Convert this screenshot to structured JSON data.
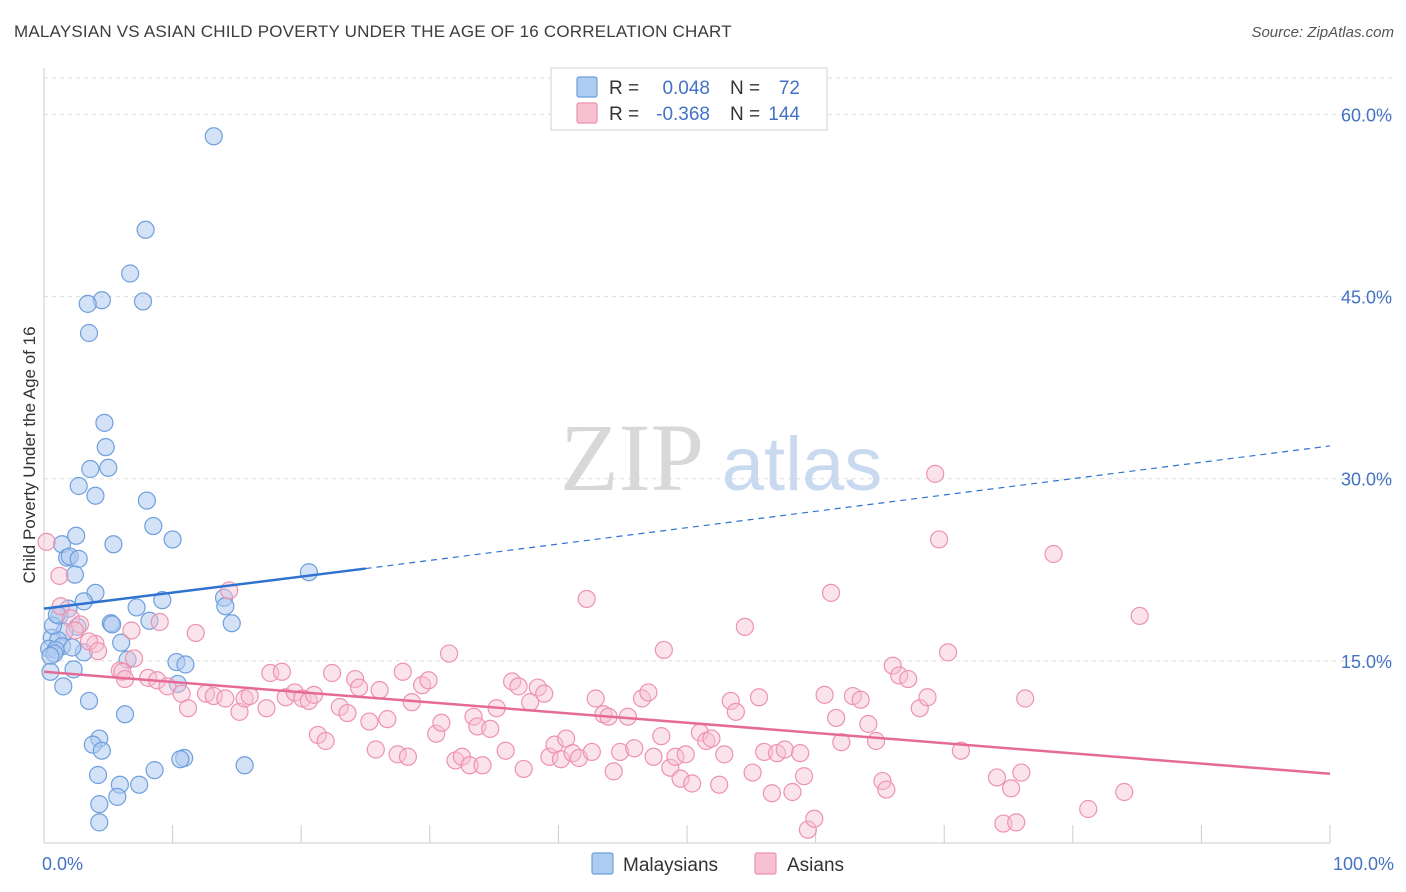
{
  "title": "MALAYSIAN VS ASIAN CHILD POVERTY UNDER THE AGE OF 16 CORRELATION CHART",
  "source": "Source: ZipAtlas.com",
  "watermark": {
    "zip": "ZIP",
    "atlas": "atlas"
  },
  "colors": {
    "blue_fill": "#aecbf0",
    "blue_stroke": "#6f9fdc",
    "blue_line": "#2f73d0",
    "pink_fill": "#f7c1d2",
    "pink_stroke": "#ee92b0",
    "pink_line": "#e56a96",
    "grid": "#dddddd",
    "axis_text": "#4472c4"
  },
  "legend": {
    "rows": [
      {
        "r_label": "R =",
        "r_value": "0.048",
        "n_label": "N =",
        "n_value": "72"
      },
      {
        "r_label": "R =",
        "r_value": "-0.368",
        "n_label": "N =",
        "n_value": "144"
      }
    ]
  },
  "bottom_legend": [
    "Malaysians",
    "Asians"
  ],
  "chart_data": {
    "type": "scatter",
    "title": "MALAYSIAN VS ASIAN CHILD POVERTY UNDER THE AGE OF 16 CORRELATION CHART",
    "xlabel": "",
    "ylabel": "Child Poverty Under the Age of 16",
    "xlim": [
      0,
      100
    ],
    "ylim": [
      0,
      63
    ],
    "x_tick_labels": [
      "0.0%",
      "100.0%"
    ],
    "y_ticks": [
      15,
      30,
      45,
      60
    ],
    "y_tick_labels": [
      "15.0%",
      "30.0%",
      "45.0%",
      "60.0%"
    ],
    "grid": true,
    "series": [
      {
        "name": "Malaysians",
        "r": 0.048,
        "n": 72,
        "trend": {
          "x0": 0,
          "y0": 19.3,
          "x1": 25,
          "y1": 22.6,
          "x_ext": 100,
          "y_ext": 32.7
        },
        "points": [
          [
            13.2,
            58.2
          ],
          [
            7.9,
            50.5
          ],
          [
            6.7,
            46.9
          ],
          [
            7.7,
            44.6
          ],
          [
            4.5,
            44.7
          ],
          [
            3.4,
            44.4
          ],
          [
            3.5,
            42.0
          ],
          [
            4.7,
            34.6
          ],
          [
            4.8,
            32.6
          ],
          [
            3.6,
            30.8
          ],
          [
            5.0,
            30.9
          ],
          [
            2.7,
            29.4
          ],
          [
            4.0,
            28.6
          ],
          [
            8.0,
            28.2
          ],
          [
            8.5,
            26.1
          ],
          [
            10.0,
            25.0
          ],
          [
            1.4,
            24.6
          ],
          [
            2.5,
            25.3
          ],
          [
            5.4,
            24.6
          ],
          [
            1.8,
            23.5
          ],
          [
            2.0,
            23.6
          ],
          [
            2.7,
            23.4
          ],
          [
            2.4,
            22.1
          ],
          [
            20.6,
            22.3
          ],
          [
            4.0,
            20.6
          ],
          [
            14.0,
            20.2
          ],
          [
            9.2,
            20.0
          ],
          [
            3.1,
            19.9
          ],
          [
            14.1,
            19.5
          ],
          [
            1.9,
            19.3
          ],
          [
            1.2,
            18.7
          ],
          [
            8.2,
            18.3
          ],
          [
            14.6,
            18.1
          ],
          [
            5.2,
            18.1
          ],
          [
            5.3,
            18.0
          ],
          [
            2.6,
            17.8
          ],
          [
            1.6,
            17.4
          ],
          [
            0.6,
            16.9
          ],
          [
            1.1,
            16.7
          ],
          [
            6.0,
            16.5
          ],
          [
            1.4,
            16.2
          ],
          [
            0.4,
            16.0
          ],
          [
            0.9,
            15.9
          ],
          [
            3.1,
            15.7
          ],
          [
            0.8,
            15.6
          ],
          [
            0.5,
            15.4
          ],
          [
            6.5,
            15.1
          ],
          [
            10.3,
            14.9
          ],
          [
            11.0,
            14.7
          ],
          [
            2.3,
            14.3
          ],
          [
            0.5,
            14.1
          ],
          [
            10.4,
            13.1
          ],
          [
            1.5,
            12.9
          ],
          [
            3.5,
            11.7
          ],
          [
            6.3,
            10.6
          ],
          [
            4.3,
            8.6
          ],
          [
            3.8,
            8.1
          ],
          [
            4.5,
            7.6
          ],
          [
            10.9,
            7.0
          ],
          [
            10.6,
            6.9
          ],
          [
            15.6,
            6.4
          ],
          [
            8.6,
            6.0
          ],
          [
            4.2,
            5.6
          ],
          [
            5.9,
            4.8
          ],
          [
            7.4,
            4.8
          ],
          [
            5.7,
            3.8
          ],
          [
            4.3,
            3.2
          ],
          [
            4.3,
            1.7
          ],
          [
            0.7,
            17.9
          ],
          [
            1.0,
            18.8
          ],
          [
            2.2,
            16.1
          ],
          [
            7.2,
            19.4
          ]
        ]
      },
      {
        "name": "Asians",
        "r": -0.368,
        "n": 144,
        "trend": {
          "x0": 0,
          "y0": 14.1,
          "x1": 100,
          "y1": 5.7
        },
        "points": [
          [
            0.2,
            24.8
          ],
          [
            1.2,
            22.0
          ],
          [
            1.3,
            19.5
          ],
          [
            2.1,
            18.5
          ],
          [
            2.8,
            18.0
          ],
          [
            2.4,
            17.5
          ],
          [
            14.4,
            20.8
          ],
          [
            9.0,
            18.2
          ],
          [
            4.0,
            16.4
          ],
          [
            3.5,
            16.6
          ],
          [
            4.2,
            15.8
          ],
          [
            7.0,
            15.2
          ],
          [
            11.8,
            17.3
          ],
          [
            6.8,
            17.5
          ],
          [
            5.9,
            14.2
          ],
          [
            6.1,
            14.1
          ],
          [
            8.1,
            13.6
          ],
          [
            8.8,
            13.4
          ],
          [
            9.6,
            12.9
          ],
          [
            10.7,
            12.3
          ],
          [
            11.2,
            11.1
          ],
          [
            12.6,
            12.3
          ],
          [
            13.2,
            12.1
          ],
          [
            14.1,
            11.9
          ],
          [
            15.2,
            10.8
          ],
          [
            15.6,
            11.9
          ],
          [
            16.0,
            12.1
          ],
          [
            17.3,
            11.1
          ],
          [
            17.6,
            14.0
          ],
          [
            18.5,
            14.1
          ],
          [
            18.8,
            12.0
          ],
          [
            19.5,
            12.4
          ],
          [
            20.1,
            11.9
          ],
          [
            20.6,
            11.7
          ],
          [
            21.0,
            12.2
          ],
          [
            21.3,
            8.9
          ],
          [
            21.9,
            8.4
          ],
          [
            22.4,
            14.0
          ],
          [
            23.0,
            11.2
          ],
          [
            23.6,
            10.7
          ],
          [
            24.2,
            13.5
          ],
          [
            24.5,
            12.8
          ],
          [
            25.3,
            10.0
          ],
          [
            25.8,
            7.7
          ],
          [
            26.1,
            12.6
          ],
          [
            26.7,
            10.2
          ],
          [
            27.5,
            7.3
          ],
          [
            27.9,
            14.1
          ],
          [
            28.3,
            7.1
          ],
          [
            28.6,
            11.6
          ],
          [
            29.4,
            13.0
          ],
          [
            29.9,
            13.4
          ],
          [
            30.5,
            9.0
          ],
          [
            30.9,
            9.9
          ],
          [
            31.5,
            15.6
          ],
          [
            32.0,
            6.8
          ],
          [
            32.5,
            7.1
          ],
          [
            33.1,
            6.4
          ],
          [
            33.4,
            10.4
          ],
          [
            33.7,
            9.6
          ],
          [
            34.1,
            6.4
          ],
          [
            34.7,
            9.4
          ],
          [
            35.2,
            11.1
          ],
          [
            35.9,
            7.6
          ],
          [
            36.4,
            13.3
          ],
          [
            36.9,
            12.9
          ],
          [
            37.3,
            6.1
          ],
          [
            37.8,
            11.6
          ],
          [
            38.4,
            12.8
          ],
          [
            38.9,
            12.3
          ],
          [
            39.3,
            7.1
          ],
          [
            39.7,
            8.1
          ],
          [
            40.2,
            6.9
          ],
          [
            40.6,
            8.6
          ],
          [
            41.1,
            7.4
          ],
          [
            41.6,
            7.0
          ],
          [
            42.2,
            20.1
          ],
          [
            42.6,
            7.5
          ],
          [
            42.9,
            11.9
          ],
          [
            43.5,
            10.6
          ],
          [
            43.9,
            10.4
          ],
          [
            44.3,
            5.9
          ],
          [
            44.8,
            7.5
          ],
          [
            45.4,
            10.4
          ],
          [
            45.9,
            7.8
          ],
          [
            46.5,
            11.9
          ],
          [
            47.0,
            12.4
          ],
          [
            47.4,
            7.1
          ],
          [
            48.0,
            8.8
          ],
          [
            48.2,
            15.9
          ],
          [
            48.7,
            6.2
          ],
          [
            49.1,
            7.1
          ],
          [
            49.5,
            5.3
          ],
          [
            49.9,
            7.3
          ],
          [
            50.4,
            4.9
          ],
          [
            51.0,
            9.1
          ],
          [
            51.5,
            8.4
          ],
          [
            51.9,
            8.6
          ],
          [
            52.5,
            4.8
          ],
          [
            52.9,
            7.3
          ],
          [
            53.4,
            11.7
          ],
          [
            53.8,
            10.8
          ],
          [
            54.5,
            17.8
          ],
          [
            55.1,
            5.8
          ],
          [
            55.6,
            12.0
          ],
          [
            56.0,
            7.5
          ],
          [
            56.6,
            4.1
          ],
          [
            57.0,
            7.4
          ],
          [
            57.6,
            7.7
          ],
          [
            58.2,
            4.2
          ],
          [
            58.8,
            7.4
          ],
          [
            59.1,
            5.5
          ],
          [
            59.4,
            1.1
          ],
          [
            59.9,
            2.0
          ],
          [
            60.7,
            12.2
          ],
          [
            61.2,
            20.6
          ],
          [
            61.6,
            10.3
          ],
          [
            62.0,
            8.3
          ],
          [
            62.9,
            12.1
          ],
          [
            63.5,
            11.8
          ],
          [
            64.1,
            9.8
          ],
          [
            64.7,
            8.4
          ],
          [
            65.2,
            5.1
          ],
          [
            65.5,
            4.4
          ],
          [
            66.0,
            14.6
          ],
          [
            66.5,
            13.8
          ],
          [
            67.2,
            13.5
          ],
          [
            68.1,
            11.1
          ],
          [
            68.7,
            12.0
          ],
          [
            69.3,
            30.4
          ],
          [
            69.6,
            25.0
          ],
          [
            70.3,
            15.7
          ],
          [
            71.3,
            7.6
          ],
          [
            74.1,
            5.4
          ],
          [
            74.6,
            1.6
          ],
          [
            75.2,
            4.5
          ],
          [
            75.6,
            1.7
          ],
          [
            76.0,
            5.8
          ],
          [
            76.3,
            11.9
          ],
          [
            78.5,
            23.8
          ],
          [
            81.2,
            2.8
          ],
          [
            84.0,
            4.2
          ],
          [
            85.2,
            18.7
          ],
          [
            6.3,
            13.5
          ]
        ]
      }
    ]
  },
  "y_axis_label": "Child Poverty Under the Age of 16"
}
